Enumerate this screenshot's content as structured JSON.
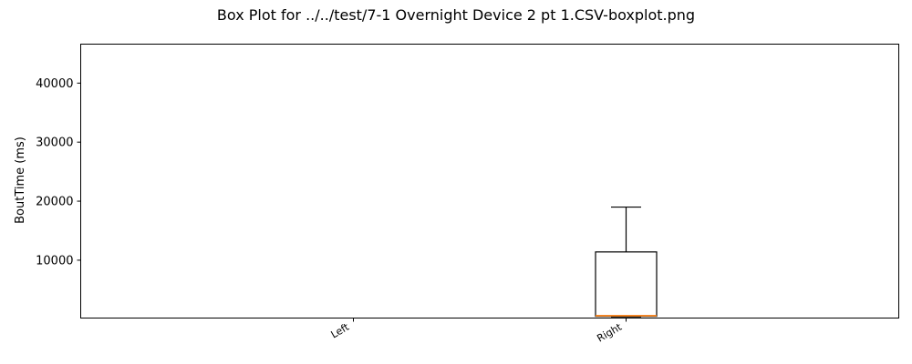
{
  "chart_data": {
    "type": "box",
    "title": "Box Plot for ../../test/7-1 Overnight Device 2 pt 1.CSV-boxplot.png",
    "xlabel": "",
    "ylabel": "BoutTime (ms)",
    "ylim": [
      200,
      46600
    ],
    "yticks": [
      10000,
      20000,
      30000,
      40000
    ],
    "ytick_labels": [
      "10000",
      "20000",
      "30000",
      "40000"
    ],
    "categories": [
      "Left",
      "Right"
    ],
    "boxes": [
      {
        "label": "Left",
        "min": null,
        "q1": null,
        "median": null,
        "q3": null,
        "max": null
      },
      {
        "label": "Right",
        "min": 400,
        "q1": 500,
        "median": 600,
        "q3": 11400,
        "max": 19000
      }
    ],
    "grid": false,
    "colors": {
      "box": "#000000",
      "median": "#ff7f0e"
    }
  }
}
